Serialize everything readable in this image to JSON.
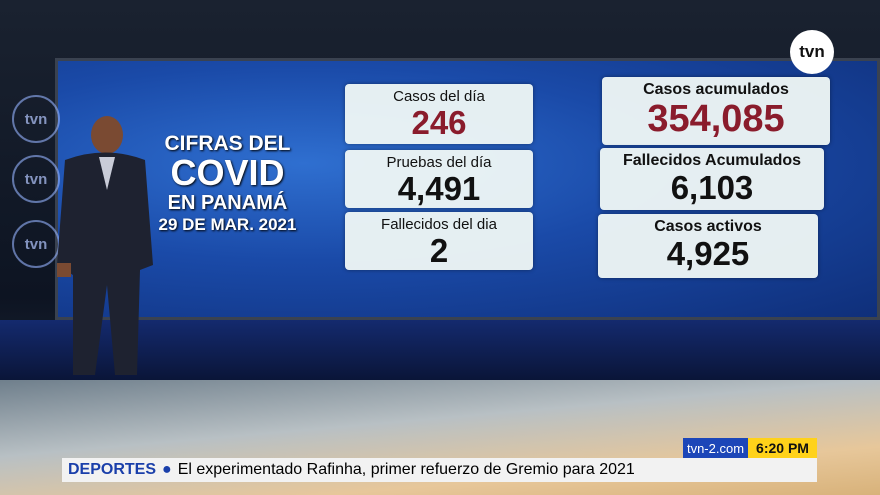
{
  "logo": "tvn",
  "panel": {
    "title": [
      "CIFRAS DEL",
      "COVID",
      "EN PANAMÁ",
      "29 DE MAR. 2021"
    ],
    "cards": [
      {
        "label": "Casos del día",
        "value": "246"
      },
      {
        "label": "Pruebas del día",
        "value": "4,491"
      },
      {
        "label": "Fallecidos del dia",
        "value": "2"
      },
      {
        "label": "Casos acumulados",
        "value": "354,085"
      },
      {
        "label": "Fallecidos Acumulados",
        "value": "6,103"
      },
      {
        "label": "Casos activos",
        "value": "4,925"
      }
    ]
  },
  "ticker": {
    "section": "DEPORTES",
    "headline": "El experimentado Rafinha, primer refuerzo de Gremio para 2021",
    "site": "tvn-2.com",
    "time": "6:20 PM"
  }
}
